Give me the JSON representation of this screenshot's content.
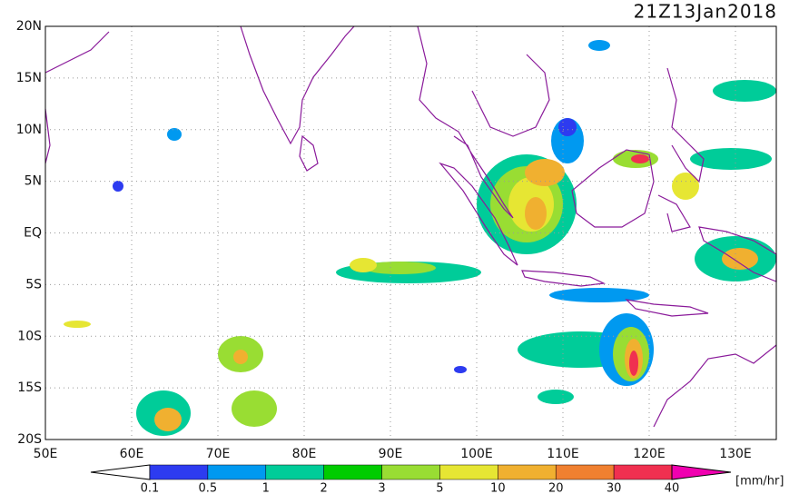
{
  "title": "21Z13Jan2018",
  "lat_labels": [
    "20N",
    "15N",
    "10N",
    "5N",
    "EQ",
    "5S",
    "10S",
    "15S",
    "20S"
  ],
  "lon_labels": [
    "50E",
    "60E",
    "70E",
    "80E",
    "90E",
    "100E",
    "110E",
    "120E",
    "130E"
  ],
  "colorbar": {
    "labels": [
      "0.1",
      "0.5",
      "1",
      "2",
      "3",
      "5",
      "10",
      "20",
      "30",
      "40"
    ],
    "unit": "[mm/hr]"
  }
}
